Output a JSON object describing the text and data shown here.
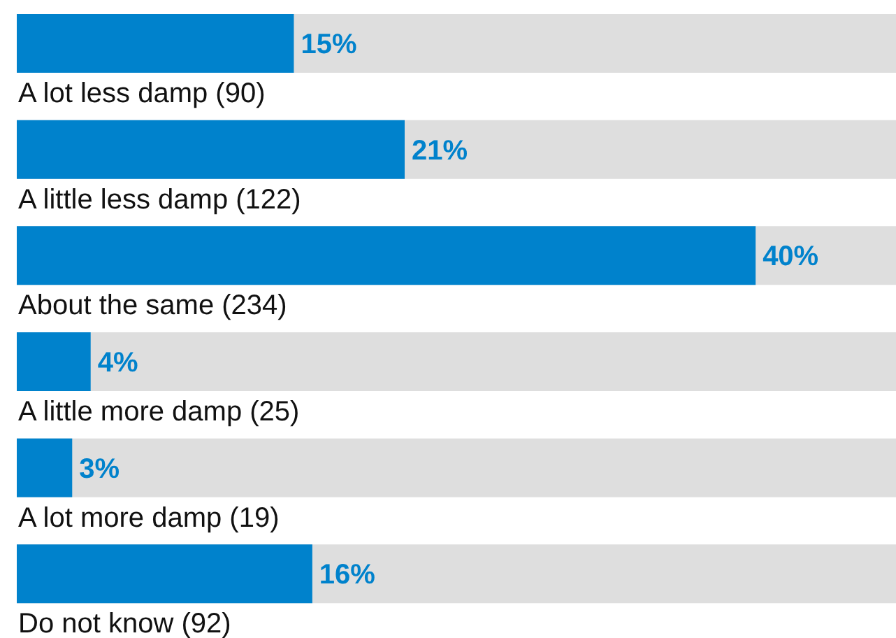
{
  "chart_data": {
    "type": "bar",
    "orientation": "horizontal",
    "categories": [
      "A lot less damp (90)",
      "A little less damp (122)",
      "About the same (234)",
      "A little more damp (25)",
      "A lot more damp (19)",
      "Do not know (92)"
    ],
    "values": [
      15,
      21,
      40,
      4,
      3,
      16
    ],
    "value_labels": [
      "15%",
      "21%",
      "40%",
      "4%",
      "3%",
      "16%"
    ],
    "color": "#0082cc",
    "tick_labels": false
  }
}
